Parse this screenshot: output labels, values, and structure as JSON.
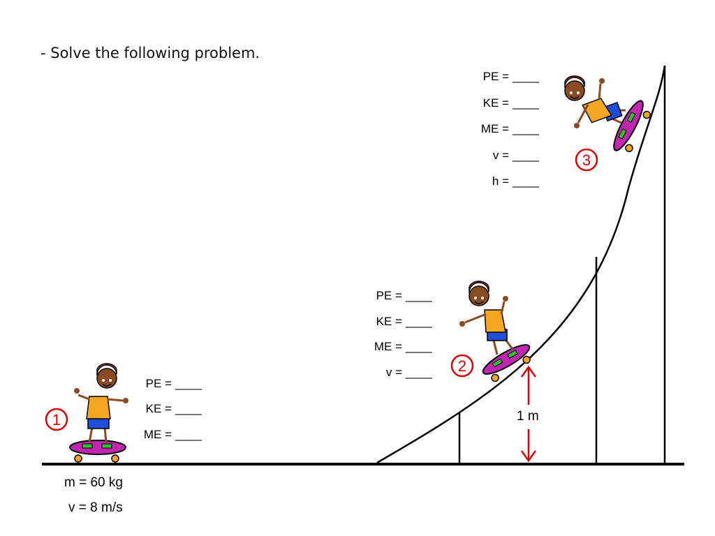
{
  "instruction": "- Solve the following problem.",
  "blank": "____",
  "given": {
    "mass": "m = 60 kg",
    "velocity": "v = 8 m/s"
  },
  "positions": [
    {
      "number": "1",
      "labels": [
        "PE =",
        "KE =",
        "ME ="
      ]
    },
    {
      "number": "2",
      "labels": [
        "PE =",
        "KE =",
        "ME =",
        "v ="
      ]
    },
    {
      "number": "3",
      "labels": [
        "PE =",
        "KE =",
        "ME =",
        "v =",
        "h ="
      ]
    }
  ],
  "height_marker": "1 m",
  "colors": {
    "marker_red": "#e00000",
    "ramp_black": "#000000",
    "skater_shirt": "#f5a623",
    "skater_shorts": "#1f4fd8",
    "skater_helmet": "#e53030",
    "skateboard": "#c026b0",
    "skateboard_stripe": "#2fbf2f",
    "skin": "#8a4b20"
  }
}
